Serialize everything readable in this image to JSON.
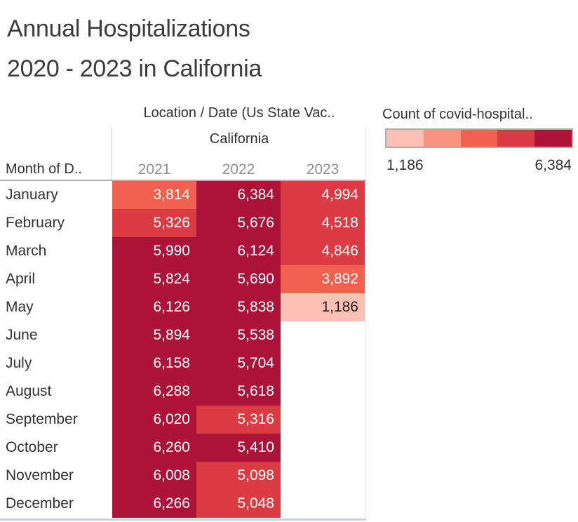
{
  "title": {
    "line1": "Annual Hospitalizations",
    "line2": "2020 - 2023 in California"
  },
  "table": {
    "column_field_label": "Location / Date (Us State Vac..",
    "column_group": "California",
    "row_field_label": "Month of D.."
  },
  "legend": {
    "title": "Count of covid-hospital..",
    "min_label": "1,186",
    "max_label": "6,384"
  },
  "chart_data": {
    "type": "heatmap",
    "title": "Annual Hospitalizations 2020 - 2023 in California",
    "rows_label": "Month of D..",
    "columns_label": "Location / Date (Us State Vac..",
    "column_group": "California",
    "legend_title": "Count of covid-hospital..",
    "categories": [
      "January",
      "February",
      "March",
      "April",
      "May",
      "June",
      "July",
      "August",
      "September",
      "October",
      "November",
      "December"
    ],
    "series": [
      {
        "name": "2021",
        "values": [
          3814,
          5326,
          5990,
          5824,
          6126,
          5894,
          6158,
          6288,
          6020,
          6260,
          6008,
          6266
        ]
      },
      {
        "name": "2022",
        "values": [
          6384,
          5676,
          6124,
          5690,
          5838,
          5538,
          5704,
          5618,
          5316,
          5410,
          5098,
          5048
        ]
      },
      {
        "name": "2023",
        "values": [
          4994,
          4518,
          4846,
          3892,
          1186,
          null,
          null,
          null,
          null,
          null,
          null,
          null
        ]
      }
    ],
    "color_domain": [
      1186,
      6384
    ],
    "palette": [
      "#fcc1b4",
      "#fa9280",
      "#f0614f",
      "#db3b43",
      "#ac1338"
    ],
    "dark_text_color": "#1e1e1e",
    "light_text_color": "#ffffff"
  }
}
